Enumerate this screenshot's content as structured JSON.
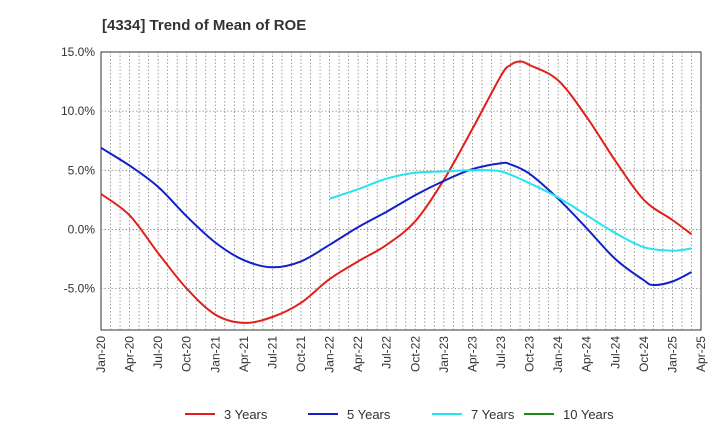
{
  "chart_data": {
    "type": "line",
    "title": "[4334]  Trend of Mean of ROE",
    "x": [
      "Jan-20",
      "Apr-20",
      "Jul-20",
      "Oct-20",
      "Jan-21",
      "Apr-21",
      "Jul-21",
      "Oct-21",
      "Jan-22",
      "Apr-22",
      "Jul-22",
      "Oct-22",
      "Jan-23",
      "Apr-23",
      "Jul-23",
      "Oct-23",
      "Jan-24",
      "Apr-24",
      "Jul-24",
      "Oct-24",
      "Jan-25",
      "Apr-25"
    ],
    "y_ticks": [
      "15.0%",
      "10.0%",
      "5.0%",
      "0.0%",
      "-5.0%"
    ],
    "ylim": [
      -8.5,
      15.0
    ],
    "grid": true,
    "legend_position": "bottom",
    "series": [
      {
        "name": "3 Years",
        "color": "#e0201b",
        "points": [
          [
            "Jan-20",
            3.0
          ],
          [
            "Apr-20",
            1.2
          ],
          [
            "Jul-20",
            -2.0
          ],
          [
            "Oct-20",
            -5.0
          ],
          [
            "Jan-21",
            -7.2
          ],
          [
            "Apr-21",
            -7.9
          ],
          [
            "Jul-21",
            -7.4
          ],
          [
            "Oct-21",
            -6.2
          ],
          [
            "Jan-22",
            -4.2
          ],
          [
            "Apr-22",
            -2.7
          ],
          [
            "Jul-22",
            -1.3
          ],
          [
            "Oct-22",
            0.7
          ],
          [
            "Jan-23",
            4.2
          ],
          [
            "Apr-23",
            8.5
          ],
          [
            "Jul-23",
            13.0
          ],
          [
            "Aug-23",
            13.9
          ],
          [
            "Sep-23",
            14.2
          ],
          [
            "Oct-23",
            13.9
          ],
          [
            "Jan-24",
            12.6
          ],
          [
            "Apr-24",
            9.5
          ],
          [
            "Jul-24",
            5.8
          ],
          [
            "Oct-24",
            2.5
          ],
          [
            "Jan-25",
            0.8
          ],
          [
            "Mar-25",
            -0.4
          ]
        ]
      },
      {
        "name": "5 Years",
        "color": "#1320c8",
        "points": [
          [
            "Jan-20",
            6.9
          ],
          [
            "Apr-20",
            5.4
          ],
          [
            "Jul-20",
            3.6
          ],
          [
            "Oct-20",
            1.1
          ],
          [
            "Jan-21",
            -1.1
          ],
          [
            "Apr-21",
            -2.6
          ],
          [
            "Jul-21",
            -3.2
          ],
          [
            "Oct-21",
            -2.7
          ],
          [
            "Jan-22",
            -1.3
          ],
          [
            "Apr-22",
            0.2
          ],
          [
            "Jul-22",
            1.5
          ],
          [
            "Oct-22",
            2.9
          ],
          [
            "Jan-23",
            4.1
          ],
          [
            "Apr-23",
            5.1
          ],
          [
            "Jul-23",
            5.6
          ],
          [
            "Aug-23",
            5.5
          ],
          [
            "Oct-23",
            4.7
          ],
          [
            "Jan-24",
            2.6
          ],
          [
            "Apr-24",
            0.1
          ],
          [
            "Jul-24",
            -2.5
          ],
          [
            "Oct-24",
            -4.3
          ],
          [
            "Nov-24",
            -4.7
          ],
          [
            "Jan-25",
            -4.4
          ],
          [
            "Mar-25",
            -3.6
          ]
        ]
      },
      {
        "name": "7 Years",
        "color": "#22e5ef",
        "points": [
          [
            "Jan-22",
            2.6
          ],
          [
            "Apr-22",
            3.4
          ],
          [
            "Jul-22",
            4.3
          ],
          [
            "Oct-22",
            4.8
          ],
          [
            "Jan-23",
            4.9
          ],
          [
            "Apr-23",
            5.0
          ],
          [
            "Jul-23",
            4.9
          ],
          [
            "Oct-23",
            3.9
          ],
          [
            "Jan-24",
            2.7
          ],
          [
            "Apr-24",
            1.2
          ],
          [
            "Jul-24",
            -0.3
          ],
          [
            "Oct-24",
            -1.5
          ],
          [
            "Jan-25",
            -1.8
          ],
          [
            "Mar-25",
            -1.6
          ]
        ]
      },
      {
        "name": "10 Years",
        "color": "#1a8a1a",
        "points": []
      }
    ]
  }
}
